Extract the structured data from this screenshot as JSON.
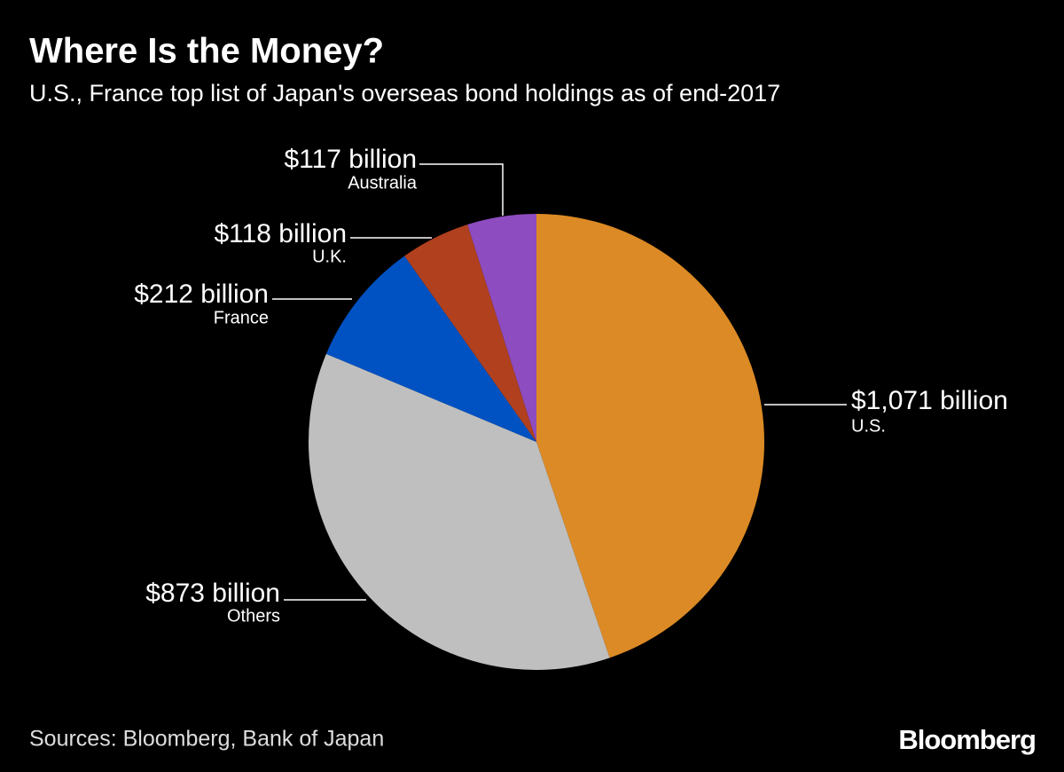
{
  "chart_data": {
    "type": "pie",
    "title": "Where Is the Money?",
    "subtitle": "U.S., France top list of Japan's overseas bond holdings as of end-2017",
    "categories": [
      "U.S.",
      "Others",
      "France",
      "U.K.",
      "Australia"
    ],
    "values": [
      1071,
      873,
      212,
      118,
      117
    ],
    "value_labels": [
      "$1,071 billion",
      "$873 billion",
      "$212 billion",
      "$118 billion",
      "$117 billion"
    ],
    "colors": [
      "#dc8a25",
      "#bfbfbf",
      "#0052c2",
      "#b0401e",
      "#8d4cbf"
    ],
    "source": "Sources: Bloomberg, Bank of Japan",
    "logo": "Bloomberg"
  }
}
